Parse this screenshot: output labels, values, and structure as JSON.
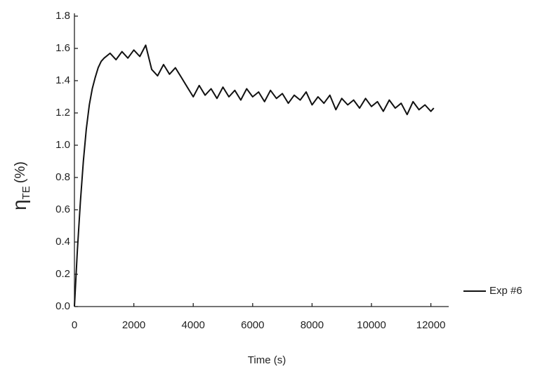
{
  "chart_data": {
    "type": "line",
    "xlabel": "Time (s)",
    "ylabel_symbol": "η",
    "ylabel_subscript": "TE",
    "ylabel_unit": "(%)",
    "xlim": [
      0,
      12600
    ],
    "xticks": [
      0,
      2000,
      4000,
      6000,
      8000,
      10000,
      12000
    ],
    "ylim": [
      0,
      1.8
    ],
    "yticks": [
      {
        "value": 0,
        "label": "0.0"
      },
      0.2,
      0.4,
      0.6,
      0.8,
      {
        "value": 1,
        "label": "1.0"
      },
      1.2,
      1.4,
      1.6,
      1.8
    ],
    "grid": false,
    "legend": "right",
    "x": [
      0,
      100,
      200,
      300,
      400,
      500,
      600,
      700,
      800,
      900,
      1000,
      1200,
      1400,
      1600,
      1800,
      2000,
      2200,
      2400,
      2600,
      2800,
      3000,
      3200,
      3400,
      3600,
      3800,
      4000,
      4200,
      4400,
      4600,
      4800,
      5000,
      5200,
      5400,
      5600,
      5800,
      6000,
      6200,
      6400,
      6600,
      6800,
      7000,
      7200,
      7400,
      7600,
      7800,
      8000,
      8200,
      8400,
      8600,
      8800,
      9000,
      9200,
      9400,
      9600,
      9800,
      10000,
      10200,
      10400,
      10600,
      10800,
      11000,
      11200,
      11400,
      11600,
      11800,
      12000,
      12100
    ],
    "series": [
      {
        "name": "Exp #6",
        "color": "#111111",
        "values": [
          0,
          0.35,
          0.65,
          0.9,
          1.1,
          1.25,
          1.35,
          1.42,
          1.48,
          1.52,
          1.54,
          1.57,
          1.53,
          1.58,
          1.54,
          1.59,
          1.55,
          1.62,
          1.47,
          1.43,
          1.5,
          1.44,
          1.48,
          1.42,
          1.36,
          1.3,
          1.37,
          1.31,
          1.35,
          1.29,
          1.36,
          1.3,
          1.34,
          1.28,
          1.35,
          1.3,
          1.33,
          1.27,
          1.34,
          1.29,
          1.32,
          1.26,
          1.31,
          1.28,
          1.33,
          1.25,
          1.3,
          1.26,
          1.31,
          1.22,
          1.29,
          1.25,
          1.28,
          1.23,
          1.29,
          1.24,
          1.27,
          1.21,
          1.28,
          1.23,
          1.26,
          1.19,
          1.27,
          1.22,
          1.25,
          1.21,
          1.23
        ]
      }
    ]
  }
}
